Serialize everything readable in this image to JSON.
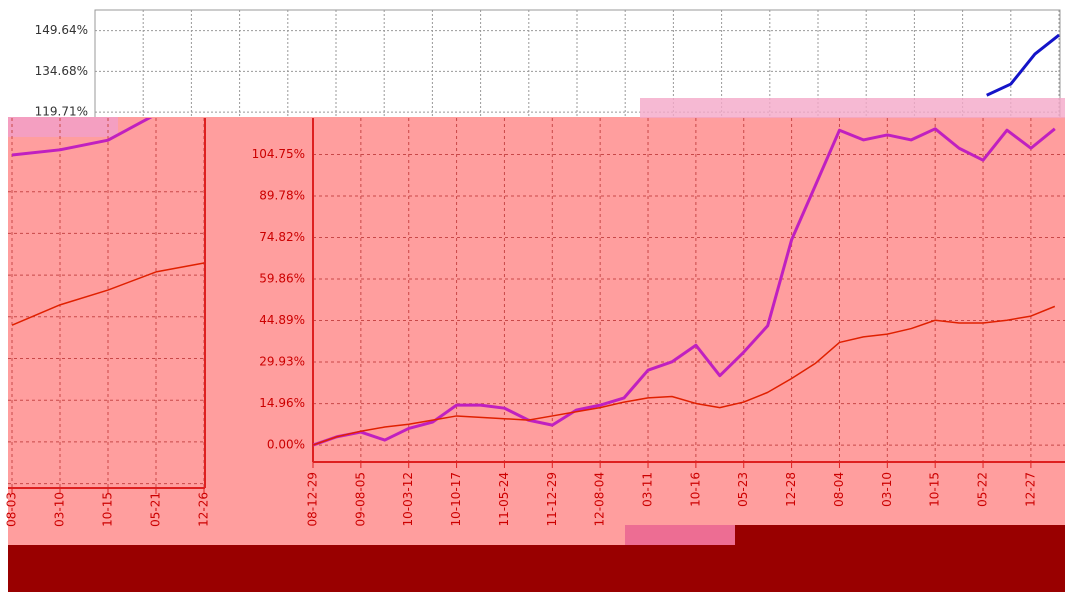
{
  "chart_data": [
    {
      "type": "line",
      "categories": [
        null,
        null,
        null,
        null,
        null,
        null,
        null,
        null,
        null,
        null,
        null,
        null,
        null,
        null,
        null,
        null,
        null,
        null,
        null,
        null,
        null,
        null,
        null,
        null,
        null,
        null,
        null,
        null,
        null,
        null,
        null,
        null,
        null,
        null,
        null,
        null,
        null,
        null,
        null,
        null,
        null
      ],
      "series": [
        {
          "color": "#1414c8",
          "values": [
            null,
            null,
            null,
            null,
            null,
            null,
            null,
            null,
            null,
            null,
            null,
            null,
            null,
            null,
            null,
            null,
            null,
            null,
            null,
            null,
            null,
            null,
            null,
            null,
            null,
            null,
            null,
            null,
            null,
            null,
            null,
            null,
            null,
            null,
            null,
            null,
            null,
            125.9,
            130,
            141,
            148
          ]
        }
      ],
      "ylim": [
        117.9,
        157.2
      ],
      "yticks": [
        {
          "value": 149.64,
          "label": "149.64%"
        },
        {
          "value": 134.68,
          "label": "134.68%"
        },
        {
          "value": 119.71,
          "label": "119.71%"
        }
      ],
      "grid": true
    },
    {
      "type": "line",
      "categories": [
        "08-03",
        "03-10",
        "10-15",
        "05-21",
        "12-26"
      ],
      "series": [
        {
          "color": "#c020c0",
          "values": [
            90,
            91.4,
            94,
            101,
            null
          ]
        },
        {
          "color": "#e02000",
          "values": [
            44,
            49.5,
            53.5,
            58.4,
            60.8
          ]
        }
      ],
      "ylim": [
        0,
        100
      ],
      "grid": true
    },
    {
      "type": "line",
      "categories": [
        "08-12-29",
        null,
        "09-08-05",
        null,
        "10-03-12",
        null,
        "10-10-17",
        null,
        "11-05-24",
        null,
        "11-12-29",
        null,
        "12-08-04",
        null,
        "03-11",
        null,
        "10-16",
        null,
        "05-23",
        null,
        "12-28",
        null,
        "08-04",
        null,
        "03-10",
        null,
        "10-15",
        null,
        "05-22",
        null,
        "12-27",
        null
      ],
      "series": [
        {
          "color": "#c020c0",
          "values": [
            0,
            3,
            4.7,
            1.8,
            6,
            8.3,
            14.4,
            14.4,
            13.3,
            9,
            7.2,
            12.6,
            14.4,
            17,
            27,
            30,
            36,
            25,
            33.5,
            43,
            74,
            93.7,
            113.5,
            110,
            111.8,
            110,
            114,
            107,
            102.7,
            113.5,
            107,
            114
          ]
        },
        {
          "color": "#e02000",
          "values": [
            0,
            3,
            5,
            6.5,
            7.5,
            9,
            10.5,
            10,
            9.5,
            9,
            10.5,
            12,
            13.5,
            15.5,
            17,
            17.5,
            15,
            13.5,
            15.5,
            19,
            24,
            29.5,
            37,
            39,
            40,
            42,
            45,
            44,
            44,
            45,
            46.5,
            50
          ]
        }
      ],
      "ylim": [
        -6.1,
        117.9
      ],
      "yticks": [
        {
          "value": 104.75,
          "label": "104.75%"
        },
        {
          "value": 89.78,
          "label": "89.78%"
        },
        {
          "value": 74.82,
          "label": "74.82%"
        },
        {
          "value": 59.86,
          "label": "59.86%"
        },
        {
          "value": 44.89,
          "label": "44.89%"
        },
        {
          "value": 29.93,
          "label": "29.93%"
        },
        {
          "value": 14.96,
          "label": "14.96%"
        },
        {
          "value": 0,
          "label": "0.00%"
        }
      ],
      "grid": true
    }
  ]
}
